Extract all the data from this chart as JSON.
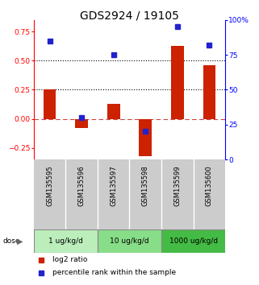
{
  "title": "GDS2924 / 19105",
  "samples": [
    "GSM135595",
    "GSM135596",
    "GSM135597",
    "GSM135598",
    "GSM135599",
    "GSM135600"
  ],
  "log2_ratio": [
    0.25,
    -0.08,
    0.13,
    -0.32,
    0.63,
    0.46
  ],
  "percentile_rank": [
    85,
    30,
    75,
    20,
    95,
    82
  ],
  "doses": [
    {
      "label": "1 ug/kg/d",
      "samples": [
        0,
        1
      ],
      "color": "#bbeebb"
    },
    {
      "label": "10 ug/kg/d",
      "samples": [
        2,
        3
      ],
      "color": "#88dd88"
    },
    {
      "label": "1000 ug/kg/d",
      "samples": [
        4,
        5
      ],
      "color": "#44bb44"
    }
  ],
  "bar_color": "#cc2200",
  "dot_color": "#2222cc",
  "ylim_left": [
    -0.35,
    0.85
  ],
  "ylim_right": [
    0,
    100
  ],
  "yticks_left": [
    -0.25,
    0.0,
    0.25,
    0.5,
    0.75
  ],
  "yticks_right": [
    0,
    25,
    50,
    75,
    100
  ],
  "hlines": [
    0.25,
    0.5
  ],
  "zero_line": 0.0,
  "background_color": "#ffffff",
  "plot_bg_color": "#ffffff",
  "label_bg_color": "#cccccc",
  "bar_width": 0.4
}
